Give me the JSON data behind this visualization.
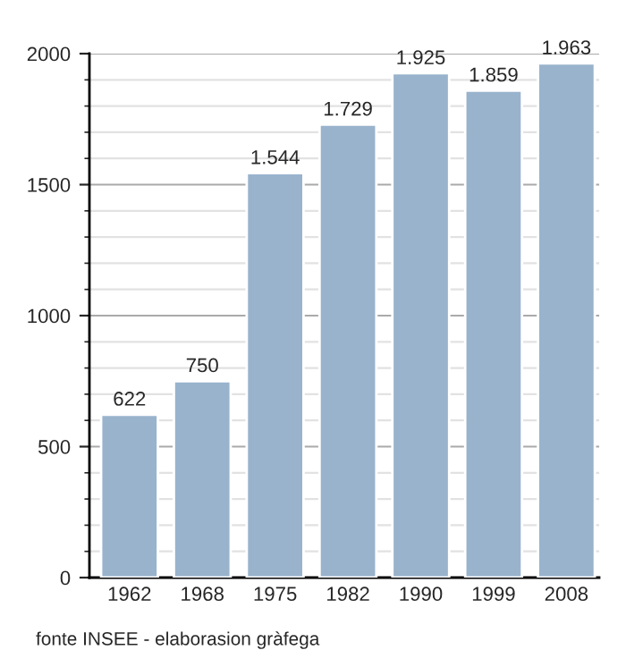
{
  "chart_data": {
    "type": "bar",
    "categories": [
      "1962",
      "1968",
      "1975",
      "1982",
      "1990",
      "1999",
      "2008"
    ],
    "values": [
      622,
      750,
      1544,
      1729,
      1925,
      1859,
      1963
    ],
    "value_labels": [
      "622",
      "750",
      "1.544",
      "1.729",
      "1.925",
      "1.859",
      "1.963"
    ],
    "color": "#99b3cc",
    "ylim": [
      0,
      2000
    ],
    "yticks": [
      0,
      500,
      1000,
      1500,
      2000
    ],
    "grid": "y",
    "annotations": [
      "fonte INSEE - elaborasion gràfega"
    ]
  }
}
